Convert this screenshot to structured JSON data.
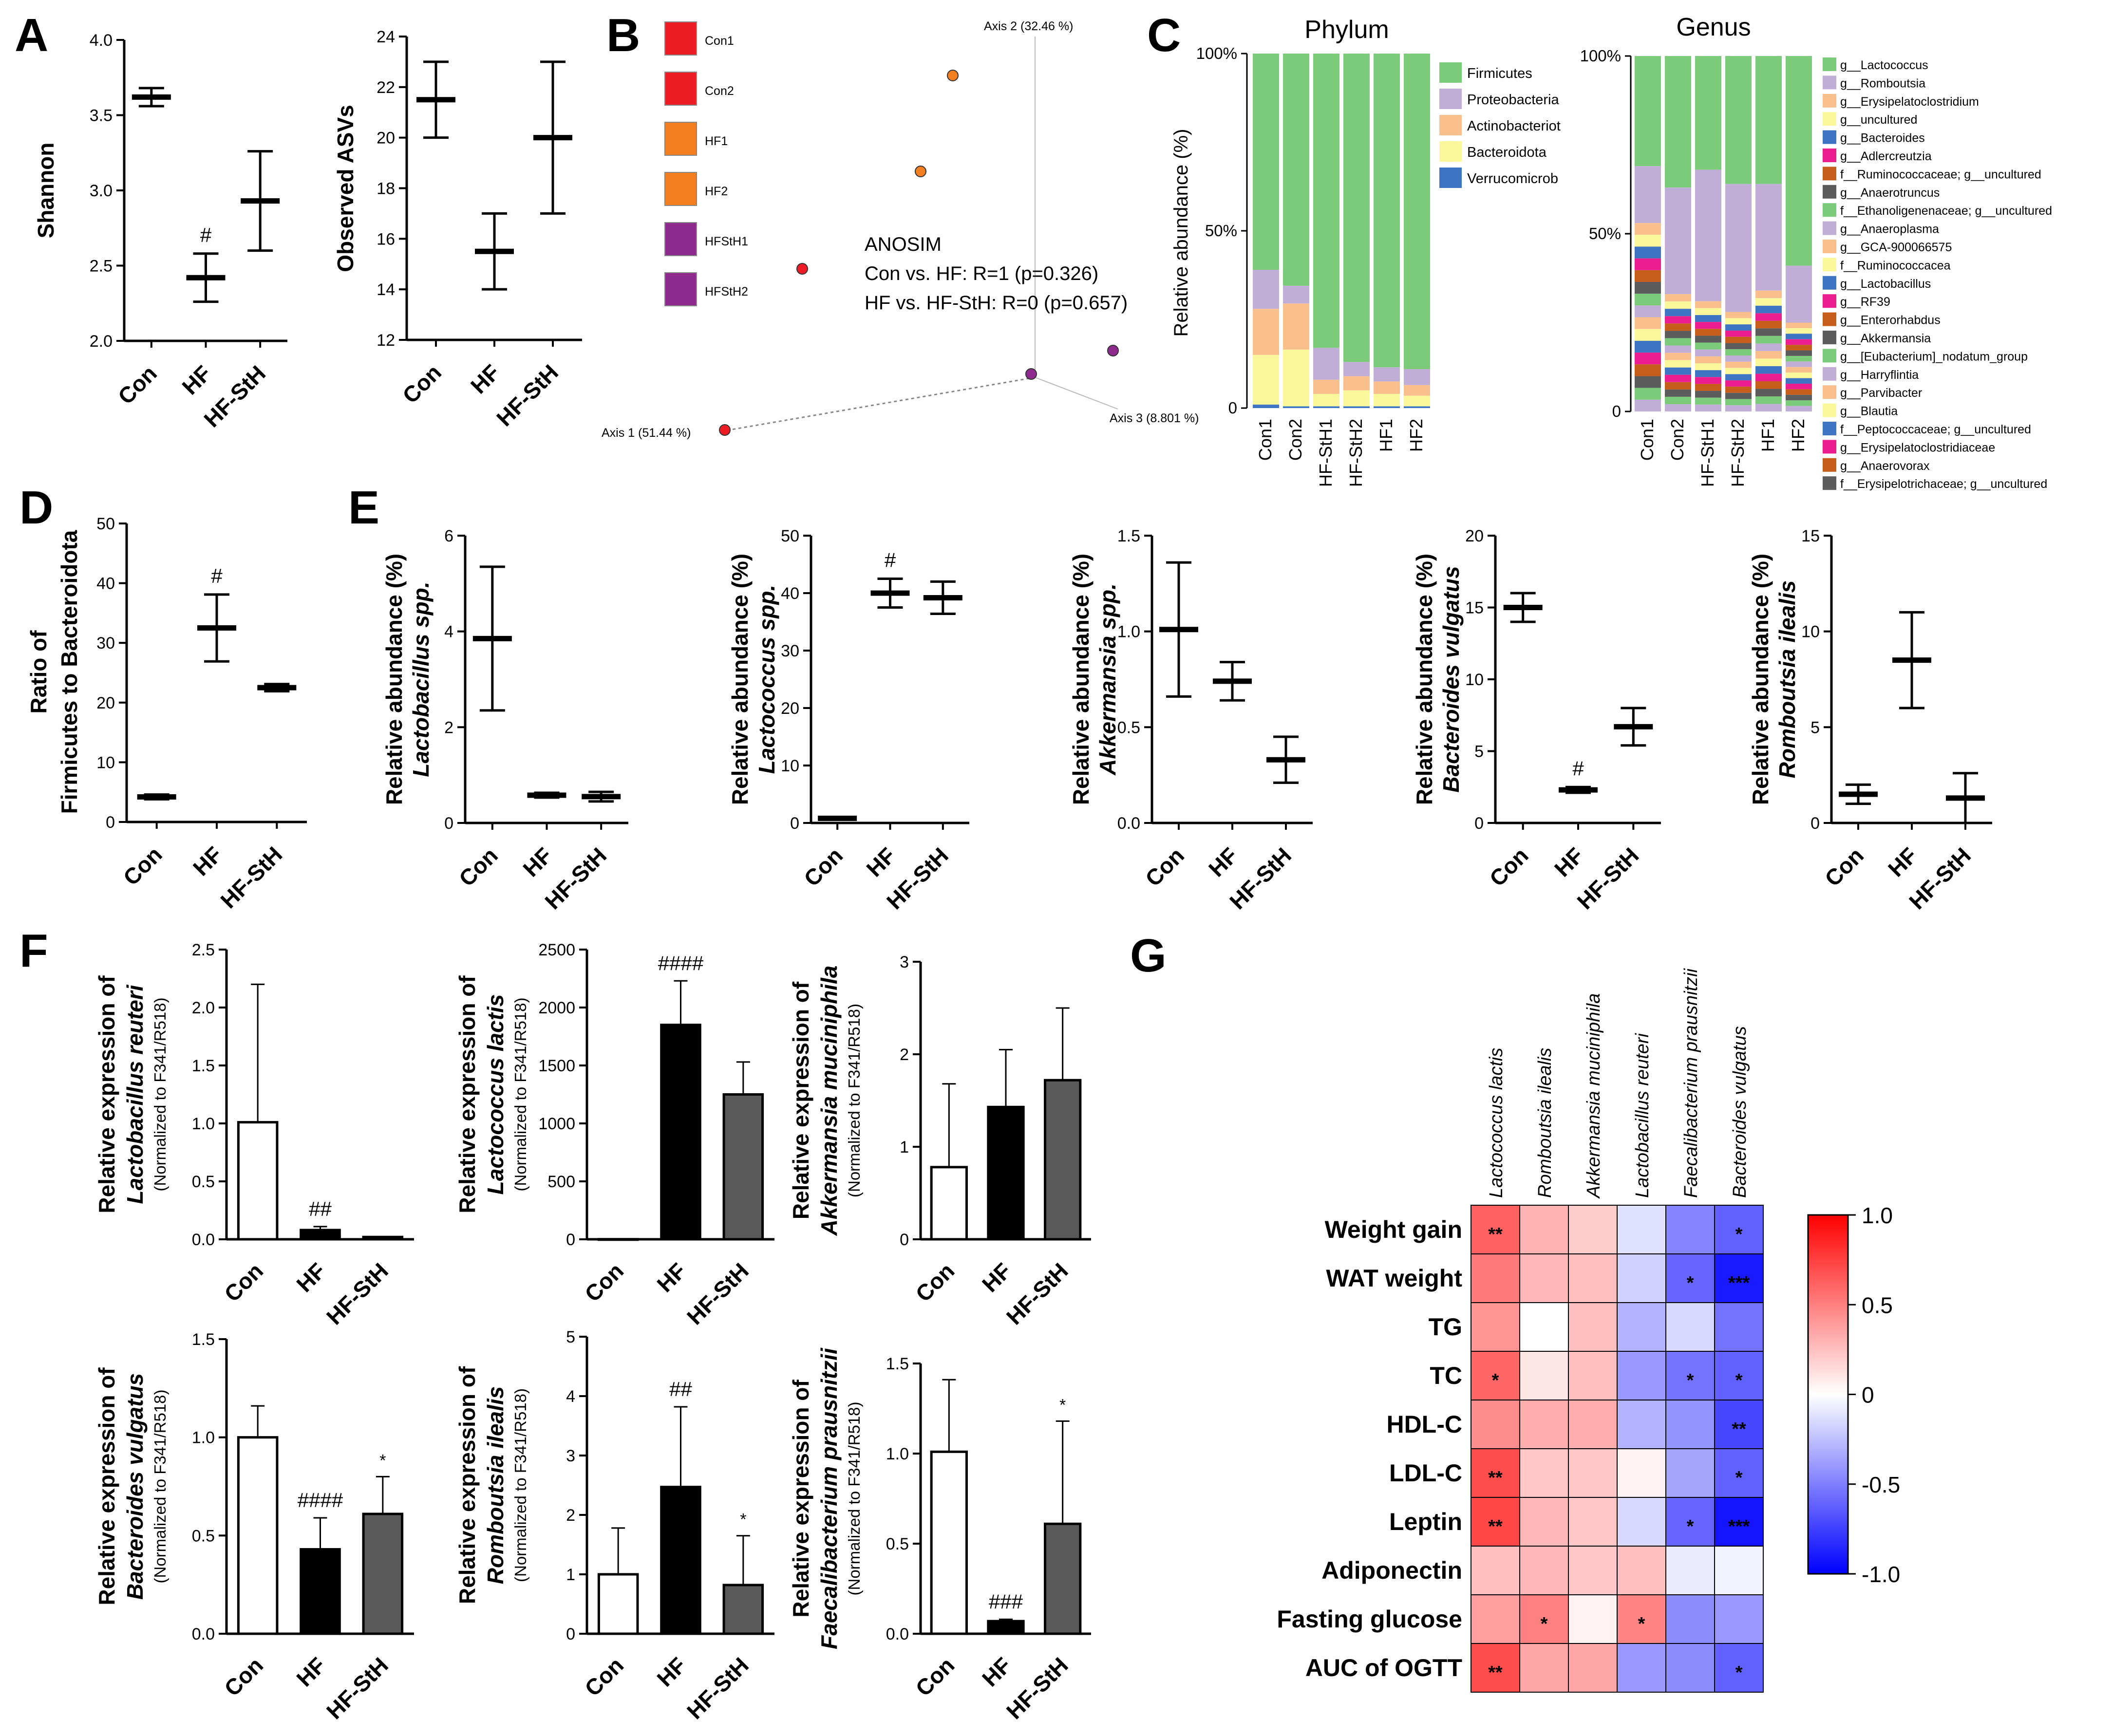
{
  "panels": {
    "A": {
      "letter": "A",
      "charts": [
        {
          "id": "shannon",
          "type": "scatter_errorbar",
          "ylabel": "Shannon",
          "ylim": [
            2.0,
            4.0
          ],
          "yticks": [
            2.0,
            2.5,
            3.0,
            3.5,
            4.0
          ],
          "ytick_labels": [
            "2.0",
            "2.5",
            "3.0",
            "3.5",
            "4.0"
          ],
          "categories": [
            "Con",
            "HF",
            "HF-StH"
          ],
          "means": [
            3.62,
            2.42,
            2.93
          ],
          "errors": [
            0.06,
            0.16,
            0.33
          ],
          "sig": [
            "",
            "#",
            ""
          ]
        },
        {
          "id": "asvs",
          "type": "scatter_errorbar",
          "ylabel": "Observed ASVs",
          "ylim": [
            12,
            24
          ],
          "yticks": [
            12,
            14,
            16,
            18,
            20,
            22,
            24
          ],
          "ytick_labels": [
            "12",
            "14",
            "16",
            "18",
            "20",
            "22",
            "24"
          ],
          "categories": [
            "Con",
            "HF",
            "HF-StH"
          ],
          "means": [
            21.5,
            15.5,
            20.0
          ],
          "errors": [
            1.5,
            1.5,
            3.0
          ],
          "sig": [
            "",
            "",
            ""
          ]
        }
      ]
    },
    "B": {
      "letter": "B",
      "legend": [
        {
          "label": "Con1",
          "color": "#ee1c24"
        },
        {
          "label": "Con2",
          "color": "#ee1c24"
        },
        {
          "label": "HF1",
          "color": "#f47f20"
        },
        {
          "label": "HF2",
          "color": "#f47f20"
        },
        {
          "label": "HFStH1",
          "color": "#8e2a8e"
        },
        {
          "label": "HFStH2",
          "color": "#8e2a8e"
        }
      ],
      "axis1": "Axis 1 (51.44 %)",
      "axis2": "Axis 2 (32.46 %)",
      "axis3": "Axis 3 (8.801 %)",
      "anosim_title": "ANOSIM",
      "anosim_1": "Con vs. HF: R=1 (p=0.326)",
      "anosim_2": "HF vs. HF-StH: R=0 (p=0.657)"
    },
    "C": {
      "letter": "C",
      "phylum": {
        "title": "Phylum",
        "ylabel": "Relative abundance (%)",
        "ytick_labels": [
          "0",
          "50%",
          "100%"
        ],
        "samples": [
          "Con1",
          "Con2",
          "HF-StH1",
          "HF-StH2",
          "HF1",
          "HF2"
        ],
        "legend": [
          "Firmicutes",
          "Proteobacteria",
          "Actinobacteriot",
          "Bacteroidota",
          "Verrucomicrob"
        ],
        "colors": [
          "#7ccb7a",
          "#c0aed6",
          "#f9bf8c",
          "#fbf89c",
          "#3e74c1"
        ]
      },
      "genus": {
        "title": "Genus",
        "ytick_labels": [
          "0",
          "50%",
          "100%"
        ],
        "samples": [
          "Con1",
          "Con2",
          "HF-StH1",
          "HF-StH2",
          "HF1",
          "HF2"
        ],
        "legend": [
          "g__Lactococcus",
          "g__Romboutsia",
          "g__Erysipelatoclostridium",
          "g__uncultured",
          "g__Bacteroides",
          "g__Adlercreutzia",
          "f__Ruminococcaceae; g__uncultured",
          "g__Anaerotruncus",
          "f__Ethanoligenenaceae; g__uncultured",
          "g__Anaeroplasma",
          "g__GCA-900066575",
          "f__Ruminococcacea",
          "g__Lactobacillus",
          "g__RF39",
          "g__Enterorhabdus",
          "g__Akkermansia",
          "g__[Eubacterium]_nodatum_group",
          "g__Harryflintia",
          "g__Parvibacter",
          "g__Blautia",
          "f__Peptococcaceae; g__uncultured",
          "g__Erysipelatoclostridiaceae",
          "g__Anaerovorax",
          "f__Erysipelotrichaceae; g__uncultured"
        ],
        "colors": [
          "#7ccb7a",
          "#c0aed6",
          "#f9bf8c",
          "#fbf89c",
          "#3e74c1",
          "#ec1d8f",
          "#c65d1b",
          "#5c5c5c",
          "#7ccb7a",
          "#c0aed6",
          "#f9bf8c",
          "#fbf89c",
          "#3e74c1",
          "#ec1d8f",
          "#c65d1b",
          "#5c5c5c",
          "#7ccb7a",
          "#c0aed6",
          "#f9bf8c",
          "#fbf89c",
          "#3e74c1",
          "#ec1d8f",
          "#c65d1b",
          "#5c5c5c"
        ]
      }
    },
    "D": {
      "letter": "D",
      "chart": {
        "id": "fb",
        "type": "scatter_errorbar",
        "ylabel": "Ratio of",
        "ylabel2": "Firmicutes to Bacteroidota",
        "ylim": [
          0,
          50
        ],
        "yticks": [
          0,
          10,
          20,
          30,
          40,
          50
        ],
        "ytick_labels": [
          "0",
          "10",
          "20",
          "30",
          "40",
          "50"
        ],
        "categories": [
          "Con",
          "HF",
          "HF-StH"
        ],
        "means": [
          4.2,
          32.5,
          22.5
        ],
        "errors": [
          0.4,
          5.6,
          0.6
        ],
        "sig": [
          "",
          "#",
          ""
        ]
      }
    },
    "E": {
      "letter": "E",
      "charts": [
        {
          "id": "lacto",
          "ylabel": "Relative abundance (%)",
          "ylabel_it": "Lactobacillus spp.",
          "ylim": [
            0,
            6
          ],
          "yticks": [
            0,
            2,
            4,
            6
          ],
          "ytick_labels": [
            "0",
            "2",
            "4",
            "6"
          ],
          "categories": [
            "Con",
            "HF",
            "HF-StH"
          ],
          "means": [
            3.85,
            0.58,
            0.55
          ],
          "errors": [
            1.5,
            0.05,
            0.1
          ],
          "sig": [
            "",
            "",
            ""
          ]
        },
        {
          "id": "lactoc",
          "ylabel": "Relative abundance (%)",
          "ylabel_it": "Lactococcus spp.",
          "ylim": [
            0,
            50
          ],
          "yticks": [
            0,
            10,
            20,
            30,
            40,
            50
          ],
          "ytick_labels": [
            "0",
            "10",
            "20",
            "30",
            "40",
            "50"
          ],
          "categories": [
            "Con",
            "HF",
            "HF-StH"
          ],
          "means": [
            0.8,
            40,
            39.2
          ],
          "errors": [
            0.2,
            2.5,
            2.8
          ],
          "sig": [
            "",
            "#",
            ""
          ]
        },
        {
          "id": "akk",
          "ylabel": "Relative abundance (%)",
          "ylabel_it": "Akkermansia spp.",
          "ylim": [
            0,
            1.5
          ],
          "yticks": [
            0,
            0.5,
            1.0,
            1.5
          ],
          "ytick_labels": [
            "0.0",
            "0.5",
            "1.0",
            "1.5"
          ],
          "categories": [
            "Con",
            "HF",
            "HF-StH"
          ],
          "means": [
            1.01,
            0.74,
            0.33
          ],
          "errors": [
            0.35,
            0.1,
            0.12
          ],
          "sig": [
            "",
            "",
            ""
          ]
        },
        {
          "id": "bact",
          "ylabel": "Relative abundance (%)",
          "ylabel_it": "Bacteroides vulgatus",
          "ylim": [
            0,
            20
          ],
          "yticks": [
            0,
            5,
            10,
            15,
            20
          ],
          "ytick_labels": [
            "0",
            "5",
            "10",
            "15",
            "20"
          ],
          "categories": [
            "Con",
            "HF",
            "HF-StH"
          ],
          "means": [
            15,
            2.3,
            6.7
          ],
          "errors": [
            1,
            0.2,
            1.3
          ],
          "sig": [
            "",
            "#",
            ""
          ]
        },
        {
          "id": "romb",
          "ylabel": "Relative abundance (%)",
          "ylabel_it": "Romboutsia ilealis",
          "ylim": [
            0,
            15
          ],
          "yticks": [
            0,
            5,
            10,
            15
          ],
          "ytick_labels": [
            "0",
            "5",
            "10",
            "15"
          ],
          "categories": [
            "Con",
            "HF",
            "HF-StH"
          ],
          "means": [
            1.5,
            8.5,
            1.3
          ],
          "errors": [
            0.5,
            2.5,
            1.3
          ],
          "sig": [
            "",
            "",
            ""
          ]
        }
      ]
    },
    "F": {
      "letter": "F",
      "ylabel": "Relative expression of",
      "sublabel": "(Normalized to F341/R518)",
      "bar_colors": [
        "#ffffff",
        "#000000",
        "#595959"
      ],
      "charts": [
        {
          "id": "f1",
          "ylabel_it": "Lactobacillus reuteri",
          "ylim": [
            0,
            2.5
          ],
          "yticks": [
            0,
            0.5,
            1.0,
            1.5,
            2.0,
            2.5
          ],
          "ytick_labels": [
            "0.0",
            "0.5",
            "1.0",
            "1.5",
            "2.0",
            "2.5"
          ],
          "categories": [
            "Con",
            "HF",
            "HF-StH"
          ],
          "values": [
            1.01,
            0.08,
            0.02
          ],
          "errors": [
            1.19,
            0.03,
            0.0
          ],
          "sig": [
            "",
            "##",
            ""
          ]
        },
        {
          "id": "f2",
          "ylabel_it": "Lactococcus lactis",
          "ylim": [
            0,
            2500
          ],
          "yticks": [
            0,
            500,
            1000,
            1500,
            2000,
            2500
          ],
          "ytick_labels": [
            "0",
            "500",
            "1000",
            "1500",
            "2000",
            "2500"
          ],
          "categories": [
            "Con",
            "HF",
            "HF-StH"
          ],
          "values": [
            1,
            1850,
            1250
          ],
          "errors": [
            0,
            380,
            280
          ],
          "sig": [
            "",
            "####",
            ""
          ]
        },
        {
          "id": "f3",
          "ylabel_it": "Akkermansia muciniphila",
          "ylim": [
            0,
            3
          ],
          "yticks": [
            0,
            1,
            2,
            3
          ],
          "ytick_labels": [
            "0",
            "1",
            "2",
            "3"
          ],
          "categories": [
            "Con",
            "HF",
            "HF-StH"
          ],
          "values": [
            0.78,
            1.43,
            1.72
          ],
          "errors": [
            0.9,
            0.62,
            0.78
          ],
          "sig": [
            "",
            "",
            ""
          ]
        },
        {
          "id": "f4",
          "ylabel_it": "Bacteroides vulgatus",
          "ylim": [
            0,
            1.5
          ],
          "yticks": [
            0,
            0.5,
            1.0,
            1.5
          ],
          "ytick_labels": [
            "0.0",
            "0.5",
            "1.0",
            "1.5"
          ],
          "categories": [
            "Con",
            "HF",
            "HF-StH"
          ],
          "values": [
            1.0,
            0.43,
            0.61
          ],
          "errors": [
            0.16,
            0.16,
            0.19
          ],
          "sig": [
            "",
            "####",
            "*"
          ]
        },
        {
          "id": "f5",
          "ylabel_it": "Romboutsia ilealis",
          "ylim": [
            0,
            5
          ],
          "yticks": [
            0,
            1,
            2,
            3,
            4,
            5
          ],
          "ytick_labels": [
            "0",
            "1",
            "2",
            "3",
            "4",
            "5"
          ],
          "categories": [
            "Con",
            "HF",
            "HF-StH"
          ],
          "values": [
            1.0,
            2.47,
            0.82
          ],
          "errors": [
            0.78,
            1.35,
            0.83
          ],
          "sig": [
            "",
            "##",
            "*"
          ]
        },
        {
          "id": "f6",
          "ylabel_it": "Faecalibacterium prausnitzii",
          "ylim": [
            0,
            1.5
          ],
          "yticks": [
            0,
            0.5,
            1.0,
            1.5
          ],
          "ytick_labels": [
            "0.0",
            "0.5",
            "1.0",
            "1.5"
          ],
          "categories": [
            "Con",
            "HF",
            "HF-StH"
          ],
          "values": [
            1.01,
            0.07,
            0.61
          ],
          "errors": [
            0.4,
            0.01,
            0.57
          ],
          "sig": [
            "",
            "###",
            "*"
          ]
        }
      ]
    },
    "G": {
      "letter": "G",
      "columns": [
        "Lactococcus lactis",
        "Romboutsia ilealis",
        "Akkermansia muciniphila",
        "Lactobacillus reuteri",
        "Faecalibacterium prausnitzii",
        "Bacteroides vulgatus"
      ],
      "rows": [
        "Weight gain",
        "WAT weight",
        "TG",
        "TC",
        "HDL-C",
        "LDL-C",
        "Leptin",
        "Adiponectin",
        "Fasting glucose",
        "AUC of OGTT"
      ],
      "values": [
        [
          0.62,
          0.3,
          0.2,
          -0.12,
          -0.48,
          -0.62
        ],
        [
          0.52,
          0.28,
          0.25,
          -0.18,
          -0.6,
          -0.9
        ],
        [
          0.42,
          0.0,
          0.25,
          -0.3,
          -0.15,
          -0.55
        ],
        [
          0.6,
          0.1,
          0.25,
          -0.4,
          -0.55,
          -0.62
        ],
        [
          0.45,
          0.32,
          0.32,
          -0.3,
          -0.42,
          -0.72
        ],
        [
          0.7,
          0.22,
          0.22,
          0.05,
          -0.35,
          -0.62
        ],
        [
          0.72,
          0.28,
          0.22,
          -0.15,
          -0.6,
          -0.92
        ],
        [
          0.25,
          0.28,
          0.22,
          0.25,
          -0.08,
          -0.05
        ],
        [
          0.38,
          0.5,
          0.05,
          0.48,
          -0.45,
          -0.4
        ],
        [
          0.7,
          0.35,
          0.35,
          -0.4,
          -0.45,
          -0.62
        ]
      ],
      "stars": [
        [
          "**",
          "",
          "",
          "",
          "",
          "*"
        ],
        [
          "",
          "",
          "",
          "",
          "*",
          "***"
        ],
        [
          "",
          "",
          "",
          "",
          "",
          ""
        ],
        [
          "*",
          "",
          "",
          "",
          "*",
          "*"
        ],
        [
          "",
          "",
          "",
          "",
          "",
          "**"
        ],
        [
          "**",
          "",
          "",
          "",
          "",
          "*"
        ],
        [
          "**",
          "",
          "",
          "",
          "*",
          "***"
        ],
        [
          "",
          "",
          "",
          "",
          "",
          ""
        ],
        [
          "",
          "*",
          "",
          "*",
          "",
          ""
        ],
        [
          "**",
          "",
          "",
          "",
          "",
          "*"
        ]
      ],
      "scale_labels": [
        "1.0",
        "0.5",
        "0",
        "-0.5",
        "-1.0"
      ],
      "scale_values": [
        1.0,
        0.5,
        0,
        -0.5,
        -1.0
      ]
    }
  }
}
